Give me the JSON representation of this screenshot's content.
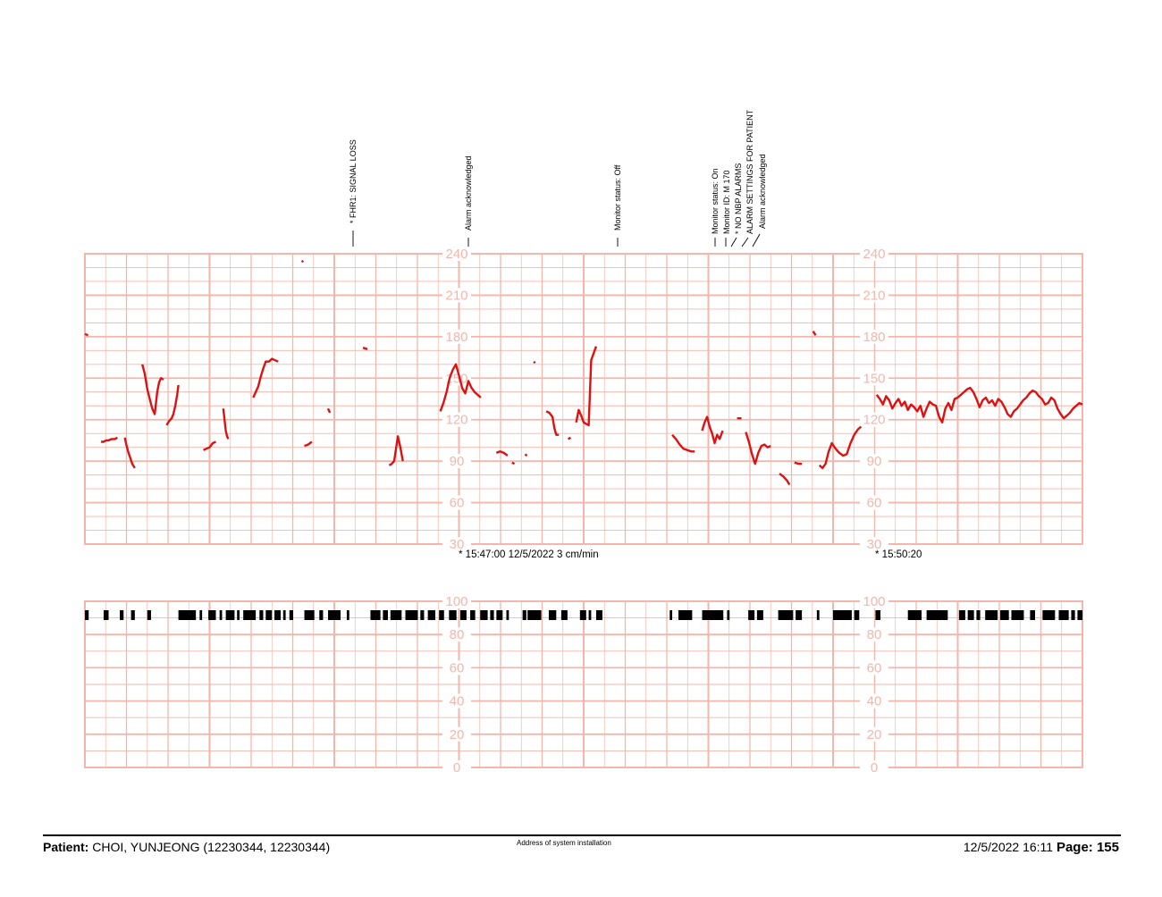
{
  "chart_data": [
    {
      "type": "line",
      "title": "",
      "ylabel": "",
      "ylim": [
        30,
        240
      ],
      "y_tick_labels": [
        "30",
        "60",
        "90",
        "120",
        "150",
        "180",
        "210",
        "240"
      ],
      "time_markers": [
        "* 15:47:00  12/5/2022  3 cm/min",
        "* 15:50:20"
      ],
      "annotations": [
        "* FHR1: SIGNAL LOSS",
        "Alarm acknowledged",
        "Monitor status: Off",
        "Monitor status: On",
        "Monitor ID: M 170",
        "* NO NBP ALARMS",
        "ALARM SETTINGS FOR PATIENT",
        "Alarm acknowledged"
      ],
      "line_color": "#dd1111",
      "grid_color": "#f4b6aa",
      "series": [
        {
          "x": [
            0,
            0.5
          ],
          "y": [
            182,
            181
          ]
        },
        {
          "x": [
            2.6,
            3.0,
            3.4,
            3.8,
            4.3,
            4.8,
            5.2
          ],
          "y": [
            104,
            104,
            105,
            105,
            106,
            106,
            107
          ]
        },
        {
          "x": [
            6.4,
            6.7,
            7.0,
            7.3,
            7.6,
            8.0
          ],
          "y": [
            107,
            101,
            96,
            92,
            88,
            85
          ]
        },
        {
          "x": [
            9.2,
            9.6,
            10.0,
            10.4,
            10.8,
            11.2,
            11.6,
            11.9,
            12.2,
            12.6
          ],
          "y": [
            160,
            153,
            142,
            135,
            128,
            124,
            140,
            147,
            150,
            149
          ]
        },
        {
          "x": [
            13.1,
            13.5,
            13.9,
            14.2,
            14.5,
            14.8,
            15.0
          ],
          "y": [
            116,
            119,
            121,
            124,
            130,
            138,
            145
          ]
        },
        {
          "x": [
            19.0,
            19.5,
            20.0,
            20.5,
            21.0
          ],
          "y": [
            98,
            99,
            100,
            103,
            104
          ]
        },
        {
          "x": [
            22.2,
            22.4,
            22.6,
            22.8,
            23.0
          ],
          "y": [
            128,
            120,
            112,
            108,
            106
          ]
        },
        {
          "x": [
            27.0,
            27.4,
            27.8,
            28.2,
            28.6,
            29.0,
            29.5,
            30.0,
            30.5,
            31.0
          ],
          "y": [
            136,
            140,
            144,
            151,
            157,
            162,
            162,
            164,
            163,
            162
          ]
        },
        {
          "x": [
            34.8,
            35.0
          ],
          "y": [
            235,
            234
          ]
        },
        {
          "x": [
            35.2,
            35.8,
            36.4
          ],
          "y": [
            101,
            102,
            104
          ]
        },
        {
          "x": [
            39.0,
            39.3
          ],
          "y": [
            128,
            125
          ]
        },
        {
          "x": [
            44.6,
            45.3
          ],
          "y": [
            172,
            171
          ]
        },
        {
          "x": [
            48.8,
            49.2,
            49.6,
            50.2,
            50.6,
            51.0
          ],
          "y": [
            87,
            88,
            90,
            108,
            100,
            90
          ]
        },
        {
          "x": [
            57.0,
            57.5,
            58.0,
            58.5,
            59.0,
            59.5,
            60.0,
            60.5,
            61.0,
            61.5,
            62.0,
            62.5,
            63.0,
            63.5
          ],
          "y": [
            126,
            132,
            140,
            150,
            156,
            160,
            152,
            143,
            139,
            148,
            143,
            140,
            138,
            136
          ]
        },
        {
          "x": [
            66.0,
            66.6,
            67.2,
            67.8
          ],
          "y": [
            96,
            97,
            96,
            94
          ]
        },
        {
          "x": [
            68.5,
            68.9
          ],
          "y": [
            89,
            88
          ]
        },
        {
          "x": [
            70.6,
            70.9
          ],
          "y": [
            95,
            94
          ]
        },
        {
          "x": [
            72.0,
            72.2
          ],
          "y": [
            162,
            161
          ]
        },
        {
          "x": [
            74.0,
            74.5,
            75.0,
            75.3,
            75.6,
            76.0
          ],
          "y": [
            126,
            125,
            122,
            114,
            109,
            109
          ]
        },
        {
          "x": [
            77.5,
            77.9
          ],
          "y": [
            106,
            107
          ]
        },
        {
          "x": [
            78.8,
            79.2,
            79.6,
            80.0,
            80.4,
            80.8,
            81.2,
            81.6,
            82.0
          ],
          "y": [
            118,
            127,
            123,
            118,
            117,
            116,
            163,
            168,
            173
          ]
        },
        {
          "x": [
            94.2,
            94.8,
            95.4,
            96.0,
            96.6,
            97.2,
            97.8
          ],
          "y": [
            109,
            106,
            102,
            99,
            98,
            97,
            97
          ]
        },
        {
          "x": [
            99.0,
            99.4,
            99.8,
            100.2,
            100.6,
            101.0,
            101.4,
            101.8,
            102.3
          ],
          "y": [
            112,
            118,
            122,
            115,
            110,
            103,
            109,
            106,
            112
          ]
        },
        {
          "x": [
            104.6,
            105.3
          ],
          "y": [
            121,
            121
          ]
        },
        {
          "x": [
            106.0,
            106.5,
            107.0,
            107.5,
            108.0,
            108.5,
            109.0,
            109.5,
            110.0
          ],
          "y": [
            111,
            104,
            95,
            88,
            96,
            101,
            102,
            100,
            101
          ]
        },
        {
          "x": [
            111.4,
            112.0,
            112.6,
            113.0
          ],
          "y": [
            81,
            79,
            76,
            73
          ]
        },
        {
          "x": [
            113.8,
            114.5,
            115.0
          ],
          "y": [
            89,
            88,
            88
          ]
        },
        {
          "x": [
            116.8,
            117.2
          ],
          "y": [
            184,
            181
          ]
        },
        {
          "x": [
            117.8,
            118.3,
            118.8,
            119.3,
            119.8,
            120.4,
            121.0,
            121.6,
            122.2,
            122.8,
            123.4,
            124.0,
            124.5
          ],
          "y": [
            87,
            85,
            88,
            97,
            103,
            99,
            96,
            94,
            95,
            103,
            109,
            113,
            115
          ]
        },
        {
          "x": [
            127.0,
            127.5,
            128.0,
            128.5,
            129.0,
            129.5,
            130.0,
            130.5,
            131.0,
            131.5,
            132.0,
            132.5,
            133.0,
            133.5,
            134.0,
            134.5,
            135.0,
            135.5,
            136.0,
            136.5,
            137.0,
            137.5,
            138.0,
            138.5,
            139.0,
            139.5,
            140.0,
            140.5,
            141.0,
            141.5,
            142.0,
            142.5,
            143.0,
            143.5,
            144.0,
            144.5,
            145.0,
            145.5,
            146.0,
            146.5,
            147.0,
            147.5,
            148.0,
            148.5,
            149.0,
            149.5,
            150.0,
            150.5,
            151.0,
            151.5,
            152.0,
            152.5,
            153.0,
            153.5,
            154.0,
            154.5,
            155.0,
            155.5,
            156.0,
            156.5,
            157.0,
            157.5,
            158.0,
            158.5,
            159.0,
            159.5,
            160.0
          ],
          "y": [
            138,
            135,
            131,
            137,
            134,
            128,
            132,
            135,
            130,
            133,
            127,
            131,
            129,
            126,
            130,
            122,
            128,
            133,
            131,
            130,
            122,
            118,
            128,
            132,
            127,
            135,
            136,
            138,
            140,
            142,
            143,
            140,
            135,
            129,
            134,
            136,
            132,
            134,
            130,
            135,
            133,
            129,
            124,
            122,
            126,
            128,
            131,
            134,
            136,
            139,
            141,
            140,
            137,
            135,
            131,
            132,
            136,
            134,
            128,
            124,
            121,
            123,
            125,
            128,
            130,
            132,
            131
          ]
        }
      ]
    },
    {
      "type": "bar",
      "title": "",
      "ylim": [
        0,
        100
      ],
      "y_tick_labels": [
        "0",
        "20",
        "40",
        "60",
        "80",
        "100"
      ],
      "description_of_marks": "black event bars at top of lower strip",
      "segments": [
        [
          0,
          0.6
        ],
        [
          3.0,
          3.8
        ],
        [
          5.6,
          6.2
        ],
        [
          7.4,
          8.0
        ],
        [
          10.0,
          10.6
        ],
        [
          15.0,
          17.8
        ],
        [
          18.4,
          18.8
        ],
        [
          19.8,
          21.0
        ],
        [
          21.6,
          22.0
        ],
        [
          22.6,
          24.0
        ],
        [
          24.4,
          24.8
        ],
        [
          25.4,
          27.4
        ],
        [
          28.0,
          28.6
        ],
        [
          29.0,
          30.0
        ],
        [
          30.4,
          31.4
        ],
        [
          31.8,
          32.2
        ],
        [
          32.8,
          33.4
        ],
        [
          35.2,
          36.8
        ],
        [
          37.6,
          38.2
        ],
        [
          39.0,
          41.0
        ],
        [
          42.0,
          42.4
        ],
        [
          45.8,
          47.4
        ],
        [
          47.8,
          48.6
        ],
        [
          49.0,
          50.8
        ],
        [
          51.4,
          53.4
        ],
        [
          53.8,
          54.4
        ],
        [
          55.0,
          56.2
        ],
        [
          56.8,
          57.6
        ],
        [
          58.4,
          59.6
        ],
        [
          60.2,
          61.2
        ],
        [
          61.8,
          62.6
        ],
        [
          63.4,
          64.6
        ],
        [
          65.0,
          65.6
        ],
        [
          66.0,
          67.0
        ],
        [
          67.6,
          68.0
        ],
        [
          70.2,
          70.8
        ],
        [
          71.0,
          73.2
        ],
        [
          74.4,
          75.6
        ],
        [
          76.4,
          77.4
        ],
        [
          79.4,
          80.4
        ],
        [
          80.8,
          81.2
        ],
        [
          82.0,
          83.0
        ],
        [
          93.8,
          94.2
        ],
        [
          95.2,
          97.4
        ],
        [
          99.0,
          102.4
        ],
        [
          103.0,
          103.4
        ],
        [
          106.4,
          107.4
        ],
        [
          107.8,
          108.8
        ],
        [
          111.2,
          113.6
        ],
        [
          114.0,
          115.0
        ],
        [
          117.4,
          117.8
        ],
        [
          120.0,
          123.0
        ],
        [
          123.4,
          124.2
        ],
        [
          126.8,
          127.6
        ],
        [
          132.0,
          134.2
        ],
        [
          135.0,
          138.4
        ],
        [
          140.2,
          141.2
        ],
        [
          141.6,
          142.6
        ],
        [
          143.0,
          143.6
        ],
        [
          144.4,
          146.4
        ],
        [
          146.8,
          148.2
        ],
        [
          148.6,
          150.6
        ],
        [
          151.6,
          152.4
        ],
        [
          153.6,
          155.6
        ],
        [
          156.2,
          157.8
        ],
        [
          158.2,
          158.8
        ],
        [
          159.2,
          160.0
        ]
      ]
    }
  ],
  "footer": {
    "patient_label": "Patient:",
    "patient_value": " CHOI, YUNJEONG (12230344, 12230344)",
    "center_text": "Address of system installation",
    "datetime": "12/5/2022 16:11",
    "page_label": "Page: 155"
  },
  "colors": {
    "grid": "#f4b6aa",
    "trace": "#dd1111",
    "axis_label": "#f4b6aa",
    "text": "#000000"
  }
}
